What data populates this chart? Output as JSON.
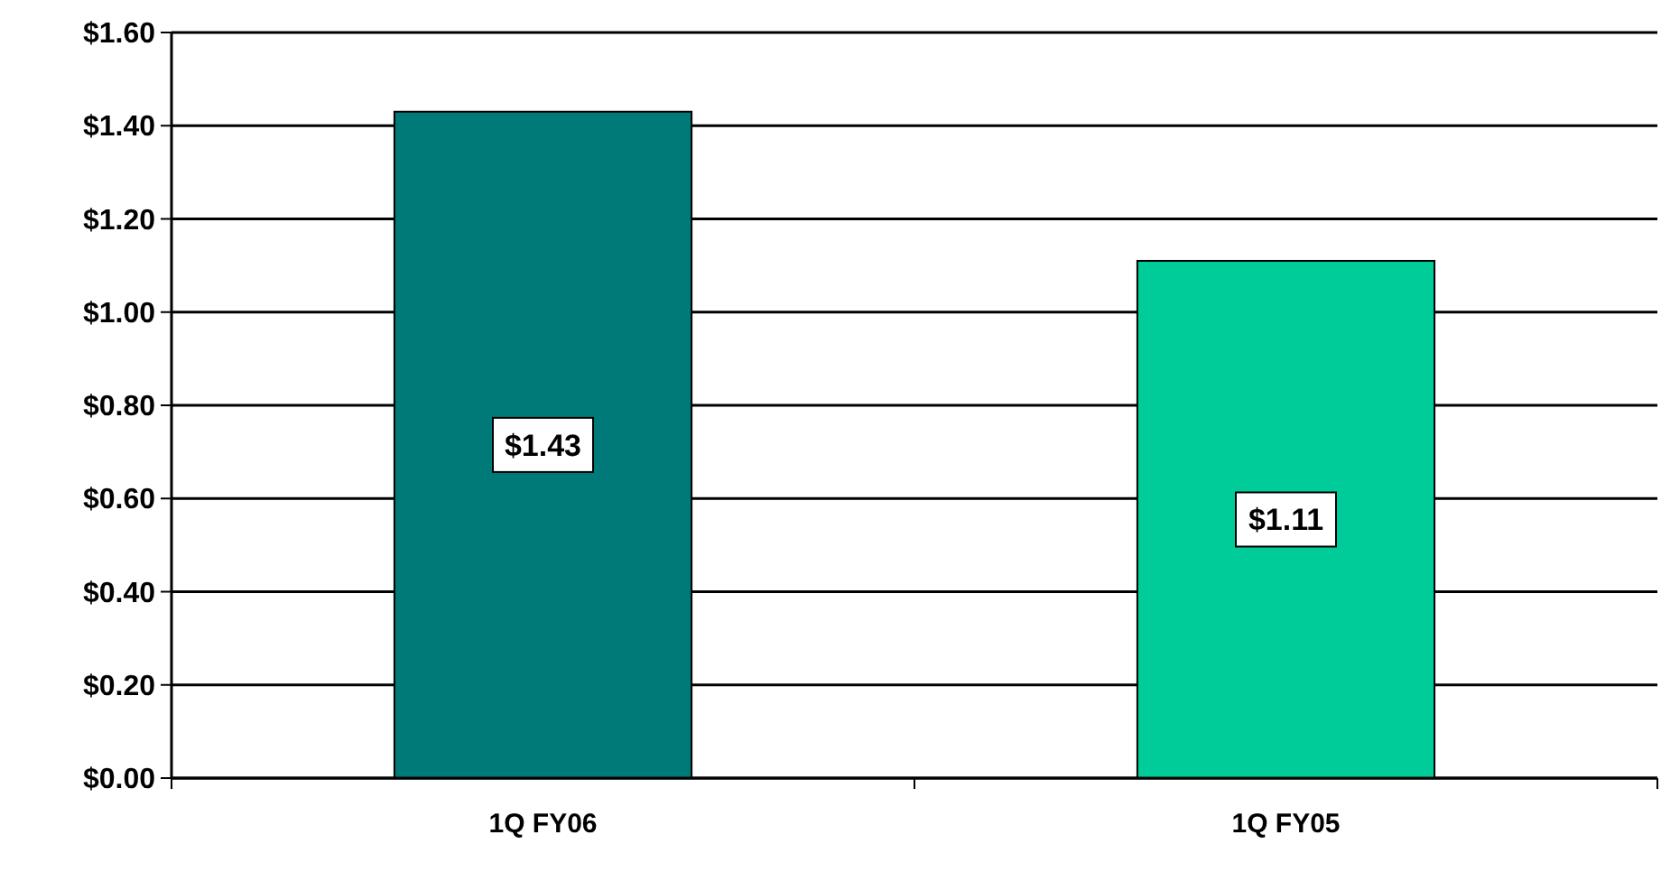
{
  "chart_data": {
    "type": "bar",
    "categories": [
      "1Q FY06",
      "1Q FY05"
    ],
    "values": [
      1.43,
      1.11
    ],
    "colors": [
      "#007a78",
      "#00cc99"
    ],
    "value_labels": [
      "$1.43",
      "$1.11"
    ],
    "ylim": [
      0,
      1.6
    ],
    "yticks": [
      {
        "value": 0,
        "label": "$0.00"
      },
      {
        "value": 0.2,
        "label": "$0.20"
      },
      {
        "value": 0.4,
        "label": "$0.40"
      },
      {
        "value": 0.6,
        "label": "$0.60"
      },
      {
        "value": 0.8,
        "label": "$0.80"
      },
      {
        "value": 1,
        "label": "$1.00"
      },
      {
        "value": 1.2,
        "label": "$1.20"
      },
      {
        "value": 1.4,
        "label": "$1.40"
      },
      {
        "value": 1.6,
        "label": "$1.60"
      }
    ],
    "grid": "y"
  }
}
